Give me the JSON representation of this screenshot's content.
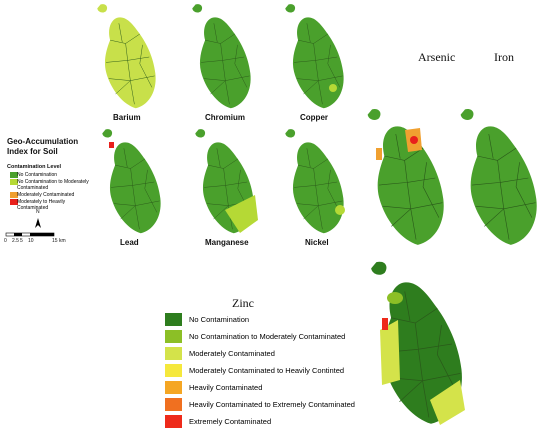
{
  "maps": [
    {
      "label": "Barium"
    },
    {
      "label": "Chromium"
    },
    {
      "label": "Copper"
    },
    {
      "label": "Lead"
    },
    {
      "label": "Manganese"
    },
    {
      "label": "Nickel"
    },
    {
      "label": "Arsenic"
    },
    {
      "label": "Iron"
    },
    {
      "label": "Zinc"
    }
  ],
  "legend": {
    "title": "Geo-Accumulation Index for Soil",
    "subtitle": "Contamination Level",
    "items": [
      {
        "label": "No Contamination",
        "color": "#4aa02c"
      },
      {
        "label": "No Contamination to Moderately Contaminated",
        "color": "#b5d935"
      },
      {
        "label": "Moderately Contaminated",
        "color": "#f0a030"
      },
      {
        "label": "Moderately to Heavily Contaminated",
        "color": "#e8201c"
      }
    ],
    "scale": [
      "0",
      "2.5",
      "5",
      "10",
      "15 km"
    ],
    "north": "N"
  },
  "zinc_legend": {
    "items": [
      {
        "label": "No Contamination",
        "color": "#2e7d1e"
      },
      {
        "label": "No Contamination to Moderately Contaminated",
        "color": "#8cbf26"
      },
      {
        "label": "Moderately Contaminated",
        "color": "#d4e34a"
      },
      {
        "label": "Moderately Contaminated to Heavily Continted",
        "color": "#f5e83c"
      },
      {
        "label": "Heavily Contaminated",
        "color": "#f5a623"
      },
      {
        "label": "Heavily Contaminated to Extremely Contaminated",
        "color": "#f07020"
      },
      {
        "label": "Extremely Contaminated",
        "color": "#ee2a1a"
      }
    ]
  }
}
